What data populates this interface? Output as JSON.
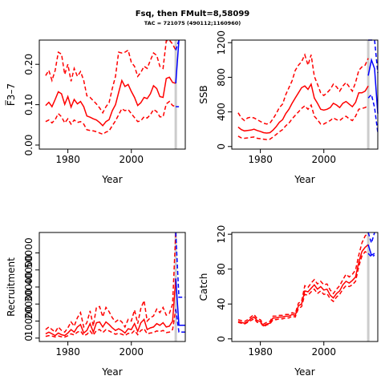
{
  "title": "Fsq, then FMult=8,58099",
  "subtitle": "TAC = 721075 (490112;1160960)",
  "colors": {
    "historic": "#ff0000",
    "forecast": "#0000ff",
    "marker": "#cccccc",
    "axis": "#000000"
  },
  "chart_data": [
    {
      "type": "line",
      "panel": "top-left",
      "xlabel": "Year",
      "ylabel": "F̅3–7",
      "xlim": [
        1971,
        2017
      ],
      "ylim": [
        -0.01,
        0.26
      ],
      "xticks": [
        1980,
        2000
      ],
      "yticks": [
        0.0,
        0.1,
        0.2
      ],
      "ytick_labels": [
        "0.00",
        "0.10",
        "0.20"
      ],
      "vline_x": 2014,
      "historic": {
        "x": [
          1973,
          1974,
          1975,
          1976,
          1977,
          1978,
          1979,
          1980,
          1981,
          1982,
          1983,
          1984,
          1985,
          1986,
          1987,
          1988,
          1989,
          1990,
          1991,
          1992,
          1993,
          1994,
          1995,
          1996,
          1997,
          1998,
          1999,
          2000,
          2001,
          2002,
          2003,
          2004,
          2005,
          2006,
          2007,
          2008,
          2009,
          2010,
          2011,
          2012,
          2013,
          2014
        ],
        "mid": [
          0.098,
          0.106,
          0.095,
          0.113,
          0.132,
          0.127,
          0.101,
          0.12,
          0.094,
          0.113,
          0.102,
          0.108,
          0.095,
          0.072,
          0.069,
          0.065,
          0.062,
          0.056,
          0.048,
          0.058,
          0.063,
          0.085,
          0.1,
          0.13,
          0.16,
          0.145,
          0.15,
          0.133,
          0.118,
          0.098,
          0.105,
          0.118,
          0.115,
          0.127,
          0.147,
          0.14,
          0.12,
          0.118,
          0.165,
          0.168,
          0.155,
          0.153
        ],
        "low": [
          0.058,
          0.062,
          0.055,
          0.063,
          0.078,
          0.07,
          0.055,
          0.065,
          0.052,
          0.062,
          0.056,
          0.058,
          0.052,
          0.038,
          0.036,
          0.035,
          0.033,
          0.03,
          0.027,
          0.032,
          0.035,
          0.048,
          0.06,
          0.075,
          0.09,
          0.085,
          0.088,
          0.078,
          0.068,
          0.058,
          0.06,
          0.07,
          0.067,
          0.075,
          0.088,
          0.083,
          0.07,
          0.07,
          0.102,
          0.108,
          0.098,
          0.095
        ],
        "high": [
          0.172,
          0.185,
          0.16,
          0.185,
          0.23,
          0.225,
          0.175,
          0.2,
          0.158,
          0.19,
          0.17,
          0.182,
          0.16,
          0.122,
          0.118,
          0.11,
          0.102,
          0.092,
          0.08,
          0.095,
          0.105,
          0.14,
          0.17,
          0.23,
          0.228,
          0.23,
          0.235,
          0.205,
          0.195,
          0.17,
          0.18,
          0.195,
          0.19,
          0.21,
          0.228,
          0.222,
          0.195,
          0.19,
          0.258,
          0.26,
          0.25,
          0.235
        ]
      },
      "forecast": {
        "x": [
          2014,
          2015
        ],
        "mid": [
          0.153,
          0.26
        ],
        "low": [
          0.095,
          0.095
        ],
        "high": [
          0.235,
          0.26
        ]
      }
    },
    {
      "type": "line",
      "panel": "top-right",
      "xlabel": "Year",
      "ylabel": "SSB",
      "xlim": [
        1971,
        2017
      ],
      "ylim": [
        -30,
        1230
      ],
      "xticks": [
        1980,
        2000
      ],
      "yticks": [
        0,
        400,
        800,
        1200
      ],
      "ytick_labels": [
        "0",
        "400",
        "800",
        "1200"
      ],
      "vline_x": 2014,
      "historic": {
        "x": [
          1973,
          1974,
          1975,
          1976,
          1977,
          1978,
          1979,
          1980,
          1981,
          1982,
          1983,
          1984,
          1985,
          1986,
          1987,
          1988,
          1989,
          1990,
          1991,
          1992,
          1993,
          1994,
          1995,
          1996,
          1997,
          1998,
          1999,
          2000,
          2001,
          2002,
          2003,
          2004,
          2005,
          2006,
          2007,
          2008,
          2009,
          2010,
          2011,
          2012,
          2013,
          2014
        ],
        "mid": [
          225,
          195,
          180,
          185,
          190,
          200,
          185,
          175,
          160,
          155,
          160,
          190,
          230,
          280,
          310,
          380,
          430,
          500,
          560,
          620,
          680,
          700,
          660,
          720,
          560,
          500,
          430,
          420,
          430,
          450,
          500,
          480,
          450,
          500,
          520,
          490,
          460,
          510,
          620,
          620,
          640,
          700
        ],
        "low": [
          120,
          100,
          95,
          100,
          105,
          110,
          95,
          90,
          85,
          80,
          85,
          110,
          140,
          170,
          195,
          240,
          270,
          320,
          360,
          400,
          440,
          470,
          430,
          480,
          350,
          310,
          260,
          260,
          280,
          300,
          330,
          310,
          300,
          330,
          350,
          320,
          300,
          350,
          430,
          440,
          450,
          470
        ],
        "high": [
          390,
          330,
          300,
          330,
          340,
          330,
          310,
          290,
          270,
          260,
          270,
          320,
          380,
          450,
          490,
          600,
          680,
          760,
          880,
          940,
          980,
          1060,
          940,
          1060,
          810,
          720,
          620,
          590,
          620,
          660,
          720,
          690,
          640,
          700,
          740,
          690,
          640,
          740,
          880,
          920,
          940,
          1020
        ]
      },
      "forecast": {
        "x": [
          2014,
          2015,
          2016,
          2017
        ],
        "mid": [
          820,
          1000,
          900,
          380
        ],
        "low": [
          560,
          600,
          450,
          160
        ],
        "high": [
          1230,
          1230,
          1230,
          850
        ]
      }
    },
    {
      "type": "line",
      "panel": "bottom-left",
      "xlabel": "Year",
      "ylabel": "Recruitment",
      "xlim": [
        1971,
        2017
      ],
      "ylim": [
        -2000,
        62000
      ],
      "xticks": [
        1980,
        2000
      ],
      "yticks": [
        0,
        10000,
        20000,
        30000,
        40000,
        50000
      ],
      "ytick_labels": [
        "0",
        "10000",
        "20000",
        "30000",
        "40000",
        "50000"
      ],
      "vline_x": 2014,
      "historic": {
        "x": [
          1973,
          1974,
          1975,
          1976,
          1977,
          1978,
          1979,
          1980,
          1981,
          1982,
          1983,
          1984,
          1985,
          1986,
          1987,
          1988,
          1989,
          1990,
          1991,
          1992,
          1993,
          1994,
          1995,
          1996,
          1997,
          1998,
          1999,
          2000,
          2001,
          2002,
          2003,
          2004,
          2005,
          2006,
          2007,
          2008,
          2009,
          2010,
          2011,
          2012,
          2013,
          2014
        ],
        "mid": [
          2500,
          3500,
          2500,
          1500,
          3000,
          2000,
          1500,
          3000,
          5000,
          3500,
          6500,
          8000,
          3000,
          4500,
          8500,
          3500,
          9000,
          9500,
          6500,
          9500,
          8000,
          6000,
          4500,
          5500,
          4500,
          3000,
          5500,
          5000,
          8500,
          4000,
          9000,
          11000,
          5000,
          6000,
          6500,
          8500,
          7500,
          9000,
          6500,
          7000,
          10000,
          35000
        ],
        "low": [
          1000,
          1500,
          1200,
          700,
          1200,
          800,
          600,
          1400,
          2500,
          1800,
          3500,
          4200,
          1500,
          2200,
          4200,
          1700,
          4500,
          5000,
          3200,
          5000,
          4200,
          3200,
          2300,
          2800,
          2300,
          1500,
          2800,
          2500,
          4500,
          2000,
          4500,
          5500,
          2500,
          3000,
          3200,
          4200,
          3800,
          4500,
          3200,
          3500,
          5000,
          17000
        ],
        "high": [
          5000,
          6500,
          5000,
          3500,
          6500,
          4500,
          3500,
          6000,
          9500,
          7000,
          12000,
          15000,
          6500,
          9000,
          16000,
          7000,
          18000,
          18500,
          12500,
          18000,
          15500,
          12000,
          9500,
          11000,
          9500,
          6500,
          11000,
          10000,
          16500,
          8500,
          17500,
          22000,
          10000,
          12000,
          13000,
          17000,
          15000,
          18000,
          13500,
          14500,
          20000,
          62000
        ]
      },
      "forecast": {
        "x": [
          2014,
          2015,
          2016,
          2017
        ],
        "mid": [
          35000,
          7500,
          7500,
          7500
        ],
        "low": [
          17000,
          3500,
          3500,
          3500
        ],
        "high": [
          62000,
          24000,
          24000,
          24000
        ]
      }
    },
    {
      "type": "line",
      "panel": "bottom-right",
      "xlabel": "Year",
      "ylabel": "Catch",
      "xlim": [
        1971,
        2017
      ],
      "ylim": [
        -3,
        122
      ],
      "xticks": [
        1980,
        2000
      ],
      "yticks": [
        0,
        40,
        80,
        120
      ],
      "ytick_labels": [
        "0",
        "40",
        "80",
        "120"
      ],
      "vline_x": 2014,
      "historic": {
        "x": [
          1973,
          1974,
          1975,
          1976,
          1977,
          1978,
          1979,
          1980,
          1981,
          1982,
          1983,
          1984,
          1985,
          1986,
          1987,
          1988,
          1989,
          1990,
          1991,
          1992,
          1993,
          1994,
          1995,
          1996,
          1997,
          1998,
          1999,
          2000,
          2001,
          2002,
          2003,
          2004,
          2005,
          2006,
          2007,
          2008,
          2009,
          2010,
          2011,
          2012,
          2013,
          2014
        ],
        "mid": [
          20,
          19,
          18,
          20,
          23,
          25,
          21,
          20,
          15,
          17,
          18,
          24,
          24,
          25,
          25,
          26,
          26,
          28,
          27,
          38,
          40,
          55,
          54,
          58,
          62,
          57,
          60,
          56,
          57,
          50,
          47,
          52,
          55,
          62,
          66,
          64,
          67,
          71,
          88,
          100,
          105,
          108
        ],
        "low": [
          19,
          18,
          17,
          19,
          21,
          23,
          19,
          19,
          14,
          16,
          17,
          22,
          22,
          23,
          23,
          24,
          24,
          26,
          25,
          35,
          37,
          51,
          50,
          54,
          57,
          52,
          55,
          51,
          52,
          46,
          43,
          48,
          51,
          57,
          61,
          60,
          62,
          66,
          83,
          95,
          100,
          98
        ],
        "high": [
          22,
          21,
          20,
          22,
          25,
          28,
          23,
          22,
          17,
          19,
          20,
          26,
          26,
          27,
          27,
          28,
          28,
          30,
          29,
          41,
          43,
          61,
          59,
          64,
          68,
          63,
          66,
          62,
          63,
          56,
          52,
          57,
          61,
          68,
          74,
          71,
          74,
          79,
          96,
          110,
          118,
          122
        ]
      },
      "forecast": {
        "x": [
          2014,
          2015,
          2016
        ],
        "mid": [
          108,
          96,
          98
        ],
        "low": [
          98,
          94,
          96
        ],
        "high": [
          122,
          110,
          122
        ]
      }
    }
  ]
}
